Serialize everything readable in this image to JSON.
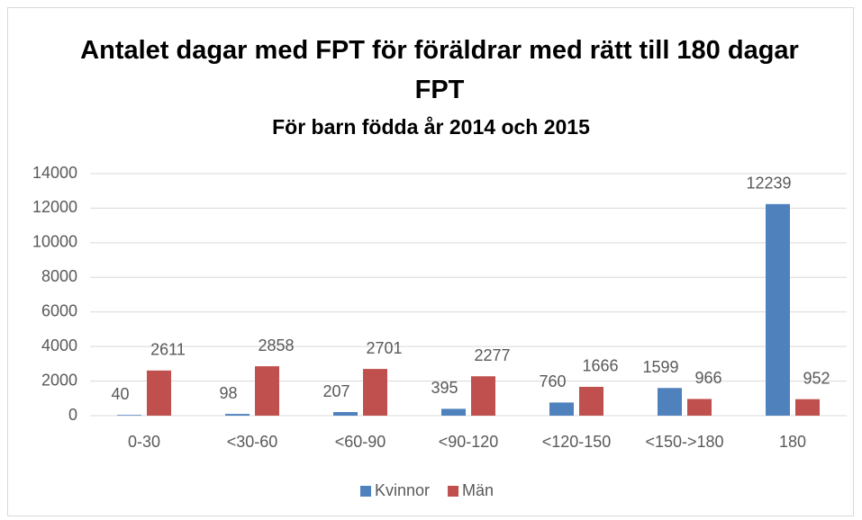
{
  "chart_data": {
    "type": "bar",
    "title": "Antalet dagar med FPT för föräldrar med rätt till 180 dagar FPT",
    "subtitle": "För barn födda år 2014 och 2015",
    "categories": [
      "0-30",
      "<30-60",
      "<60-90",
      "<90-120",
      "<120-150",
      "<150->180",
      "180"
    ],
    "series": [
      {
        "name": "Kvinnor",
        "color": "#4f81bd",
        "values": [
          40,
          98,
          207,
          395,
          760,
          1599,
          12239
        ]
      },
      {
        "name": "Män",
        "color": "#c0504d",
        "values": [
          2611,
          2858,
          2701,
          2277,
          1666,
          966,
          952
        ]
      }
    ],
    "ylim": [
      0,
      14000
    ],
    "yticks": [
      0,
      2000,
      4000,
      6000,
      8000,
      10000,
      12000,
      14000
    ],
    "grid": true,
    "legend": "bottom"
  }
}
